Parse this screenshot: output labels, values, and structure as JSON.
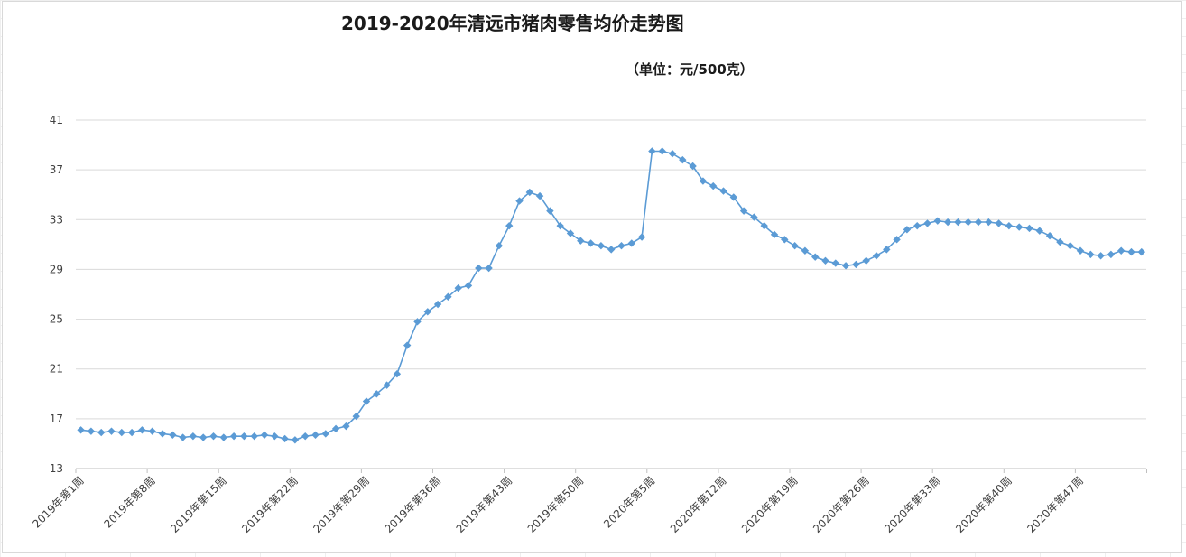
{
  "chart_data": {
    "type": "line",
    "title": "2019-2020年清远市猪肉零售均价走势图",
    "subtitle": "（单位：元/500克）",
    "xlabel": "",
    "ylabel": "",
    "ylim": [
      13,
      41
    ],
    "yticks": [
      13,
      17,
      21,
      25,
      29,
      33,
      37,
      41
    ],
    "grid": true,
    "legend": "none",
    "x_tick_labels": [
      "2019年第1周",
      "2019年第8周",
      "2019年第15周",
      "2019年第22周",
      "2019年第29周",
      "2019年第36周",
      "2019年第43周",
      "2019年第50周",
      "2020年第5周",
      "2020年第12周",
      "2020年第19周",
      "2020年第26周",
      "2020年第33周",
      "2020年第40周",
      "2020年第47周"
    ],
    "x_tick_every": 7,
    "point_count": 105,
    "series_color": "#5b9bd5",
    "values": [
      16.1,
      16.0,
      15.9,
      16.0,
      15.9,
      15.9,
      16.1,
      16.0,
      15.8,
      15.7,
      15.5,
      15.6,
      15.5,
      15.6,
      15.5,
      15.6,
      15.6,
      15.6,
      15.7,
      15.6,
      15.4,
      15.3,
      15.6,
      15.7,
      15.8,
      16.2,
      16.4,
      17.2,
      18.4,
      19.0,
      19.7,
      20.6,
      22.9,
      24.8,
      25.6,
      26.2,
      26.8,
      27.5,
      27.7,
      29.1,
      29.1,
      30.9,
      32.5,
      34.5,
      35.2,
      34.9,
      33.7,
      32.5,
      31.9,
      31.3,
      31.1,
      30.9,
      30.6,
      30.9,
      31.1,
      31.6,
      38.5,
      38.5,
      38.3,
      37.8,
      37.3,
      36.1,
      35.7,
      35.3,
      34.8,
      33.7,
      33.2,
      32.5,
      31.8,
      31.4,
      30.9,
      30.5,
      30.0,
      29.7,
      29.5,
      29.3,
      29.4,
      29.7,
      30.1,
      30.6,
      31.4,
      32.2,
      32.5,
      32.7,
      32.9,
      32.8,
      32.8,
      32.8,
      32.8,
      32.8,
      32.7,
      32.5,
      32.4,
      32.3,
      32.1,
      31.7,
      31.2,
      30.9,
      30.5,
      30.2,
      30.1,
      30.2,
      30.5,
      30.4,
      30.4
    ]
  }
}
